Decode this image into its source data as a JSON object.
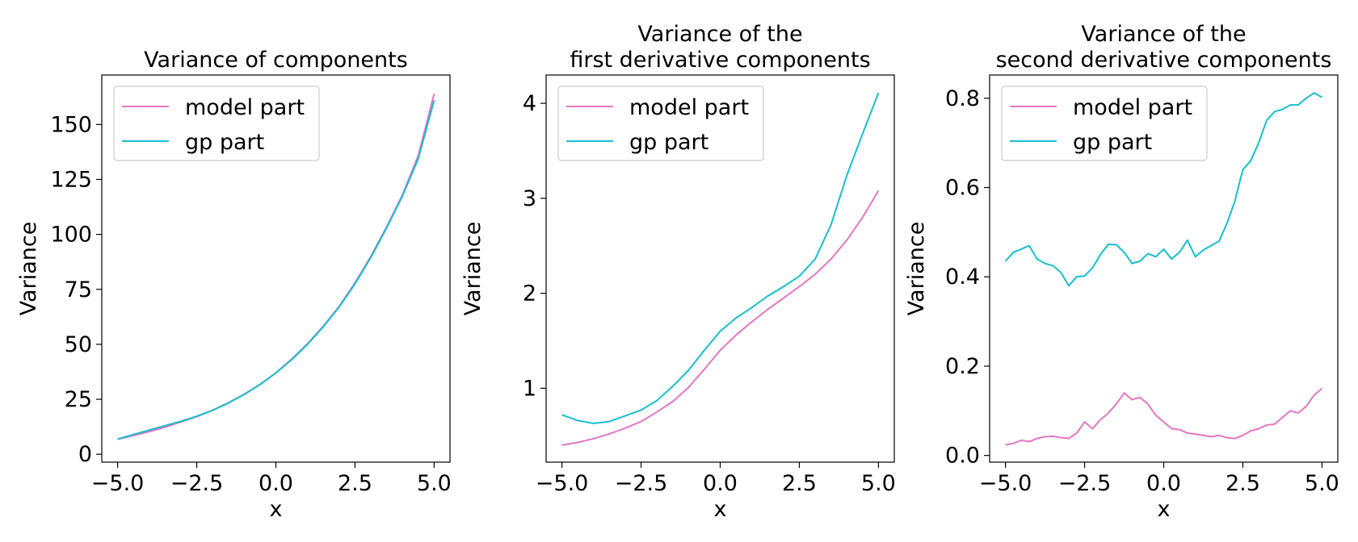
{
  "colors": {
    "model": "#e377c2",
    "gp": "#17becf"
  },
  "chart_data": [
    {
      "type": "line",
      "title": [
        "Variance of components"
      ],
      "xlabel": "x",
      "ylabel": "Variance",
      "xlim": [
        -5.5,
        5.5
      ],
      "ylim": [
        -3.6,
        172.5
      ],
      "xticks": [
        -5.0,
        -2.5,
        0.0,
        2.5,
        5.0
      ],
      "xtick_labels": [
        "−5.0",
        "−2.5",
        "0.0",
        "2.5",
        "5.0"
      ],
      "yticks": [
        0,
        25,
        50,
        75,
        100,
        125,
        150
      ],
      "ytick_labels": [
        "0",
        "25",
        "50",
        "75",
        "100",
        "125",
        "150"
      ],
      "legend": "upper-left",
      "grid": false,
      "series": [
        {
          "name": "model part",
          "color": "#e377c2",
          "x": [
            -5,
            -4.5,
            -4,
            -3.5,
            -3,
            -2.5,
            -2,
            -1.5,
            -1,
            -0.5,
            0,
            0.5,
            1,
            1.5,
            2,
            2.5,
            3,
            3.5,
            4,
            4.5,
            5
          ],
          "y": [
            6.8,
            8.5,
            10.3,
            12.3,
            14.7,
            17.1,
            20.0,
            23.4,
            27.3,
            31.8,
            37.0,
            43.3,
            50.3,
            58.3,
            67.3,
            78.0,
            90.0,
            103.5,
            118.0,
            136.0,
            164.0
          ]
        },
        {
          "name": "gp part",
          "color": "#17becf",
          "x": [
            -5,
            -4.5,
            -4,
            -3.5,
            -3,
            -2.5,
            -2,
            -1.5,
            -1,
            -0.5,
            0,
            0.5,
            1,
            1.5,
            2,
            2.5,
            3,
            3.5,
            4,
            4.5,
            5
          ],
          "y": [
            6.9,
            9.0,
            11.0,
            13.0,
            15.0,
            17.3,
            20.0,
            23.3,
            27.2,
            31.7,
            37.0,
            43.0,
            50.0,
            58.0,
            67.0,
            77.5,
            89.5,
            103.0,
            117.5,
            134.5,
            161.0
          ]
        }
      ]
    },
    {
      "type": "line",
      "title": [
        "Variance of the",
        "first derivative components"
      ],
      "xlabel": "x",
      "ylabel": "Variance",
      "xlim": [
        -5.5,
        5.5
      ],
      "ylim": [
        0.222,
        4.298
      ],
      "xticks": [
        -5.0,
        -2.5,
        0.0,
        2.5,
        5.0
      ],
      "xtick_labels": [
        "−5.0",
        "−2.5",
        "0.0",
        "2.5",
        "5.0"
      ],
      "yticks": [
        1,
        2,
        3,
        4
      ],
      "ytick_labels": [
        "1",
        "2",
        "3",
        "4"
      ],
      "legend": "upper-left",
      "grid": false,
      "series": [
        {
          "name": "model part",
          "color": "#e377c2",
          "x": [
            -5,
            -4.5,
            -4,
            -3.5,
            -3,
            -2.5,
            -2,
            -1.5,
            -1,
            -0.5,
            0,
            0.5,
            1,
            1.5,
            2,
            2.5,
            3,
            3.5,
            4,
            4.5,
            5
          ],
          "y": [
            0.4,
            0.43,
            0.47,
            0.52,
            0.58,
            0.65,
            0.75,
            0.86,
            1.01,
            1.2,
            1.4,
            1.56,
            1.7,
            1.83,
            1.95,
            2.07,
            2.2,
            2.36,
            2.56,
            2.8,
            3.08
          ]
        },
        {
          "name": "gp part",
          "color": "#17becf",
          "x": [
            -5,
            -4.5,
            -4,
            -3.5,
            -3,
            -2.5,
            -2,
            -1.5,
            -1,
            -0.5,
            0,
            0.5,
            1,
            1.5,
            2,
            2.5,
            3,
            3.5,
            4,
            4.5,
            5
          ],
          "y": [
            0.72,
            0.66,
            0.63,
            0.65,
            0.71,
            0.77,
            0.87,
            1.02,
            1.19,
            1.4,
            1.6,
            1.74,
            1.85,
            1.97,
            2.07,
            2.18,
            2.36,
            2.72,
            3.24,
            3.68,
            4.11
          ]
        }
      ]
    },
    {
      "type": "line",
      "title": [
        "Variance of the",
        "second derivative components"
      ],
      "xlabel": "x",
      "ylabel": "Variance",
      "xlim": [
        -5.5,
        5.5
      ],
      "ylim": [
        -0.015,
        0.852
      ],
      "xticks": [
        -5.0,
        -2.5,
        0.0,
        2.5,
        5.0
      ],
      "xtick_labels": [
        "−5.0",
        "−2.5",
        "0.0",
        "2.5",
        "5.0"
      ],
      "yticks": [
        0.0,
        0.2,
        0.4,
        0.6,
        0.8
      ],
      "ytick_labels": [
        "0.0",
        "0.2",
        "0.4",
        "0.6",
        "0.8"
      ],
      "legend": "upper-left",
      "grid": false,
      "series": [
        {
          "name": "model part",
          "color": "#e377c2",
          "x": [
            -5,
            -4.75,
            -4.5,
            -4.25,
            -4,
            -3.75,
            -3.5,
            -3.25,
            -3,
            -2.75,
            -2.5,
            -2.25,
            -2,
            -1.75,
            -1.5,
            -1.25,
            -1,
            -0.75,
            -0.5,
            -0.25,
            0,
            0.25,
            0.5,
            0.75,
            1,
            1.25,
            1.5,
            1.75,
            2,
            2.25,
            2.5,
            2.75,
            3,
            3.25,
            3.5,
            3.75,
            4,
            4.25,
            4.5,
            4.75,
            5
          ],
          "y": [
            0.024,
            0.027,
            0.034,
            0.031,
            0.038,
            0.042,
            0.043,
            0.04,
            0.038,
            0.05,
            0.075,
            0.06,
            0.08,
            0.095,
            0.115,
            0.14,
            0.125,
            0.13,
            0.115,
            0.09,
            0.075,
            0.06,
            0.058,
            0.05,
            0.048,
            0.045,
            0.042,
            0.045,
            0.04,
            0.038,
            0.045,
            0.055,
            0.06,
            0.068,
            0.07,
            0.085,
            0.1,
            0.095,
            0.11,
            0.135,
            0.15
          ]
        },
        {
          "name": "gp part",
          "color": "#17becf",
          "x": [
            -5,
            -4.75,
            -4.5,
            -4.25,
            -4,
            -3.75,
            -3.5,
            -3.25,
            -3,
            -2.75,
            -2.5,
            -2.25,
            -2,
            -1.75,
            -1.5,
            -1.25,
            -1,
            -0.75,
            -0.5,
            -0.25,
            0,
            0.25,
            0.5,
            0.75,
            1,
            1.25,
            1.5,
            1.75,
            2,
            2.25,
            2.5,
            2.75,
            3,
            3.25,
            3.5,
            3.75,
            4,
            4.25,
            4.5,
            4.75,
            5
          ],
          "y": [
            0.435,
            0.455,
            0.462,
            0.47,
            0.44,
            0.43,
            0.425,
            0.41,
            0.38,
            0.4,
            0.402,
            0.42,
            0.45,
            0.473,
            0.472,
            0.455,
            0.43,
            0.435,
            0.452,
            0.445,
            0.462,
            0.44,
            0.455,
            0.482,
            0.445,
            0.46,
            0.47,
            0.48,
            0.52,
            0.57,
            0.64,
            0.66,
            0.7,
            0.75,
            0.77,
            0.775,
            0.785,
            0.785,
            0.8,
            0.812,
            0.802
          ]
        }
      ]
    }
  ]
}
